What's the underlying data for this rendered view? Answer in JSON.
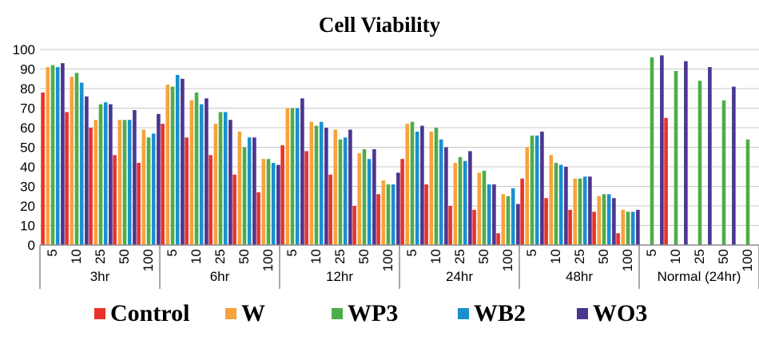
{
  "chart_data": {
    "type": "bar",
    "title": "Cell Viability",
    "xlabel": "",
    "ylabel": "",
    "ylim": [
      0,
      100
    ],
    "yticks": [
      0,
      10,
      20,
      30,
      40,
      50,
      60,
      70,
      80,
      90,
      100
    ],
    "grid": true,
    "legend_position": "bottom",
    "groups": [
      {
        "label": "3hr",
        "categories": [
          "5",
          "10",
          "25",
          "50",
          "100"
        ]
      },
      {
        "label": "6hr",
        "categories": [
          "5",
          "10",
          "25",
          "50",
          "100"
        ]
      },
      {
        "label": "12hr",
        "categories": [
          "5",
          "10",
          "25",
          "50",
          "100"
        ]
      },
      {
        "label": "24hr",
        "categories": [
          "5",
          "10",
          "25",
          "50",
          "100"
        ]
      },
      {
        "label": "48hr",
        "categories": [
          "5",
          "10",
          "25",
          "50",
          "100"
        ]
      },
      {
        "label": "Normal (24hr)",
        "categories": [
          "5",
          "10",
          "25",
          "50",
          "100"
        ]
      }
    ],
    "series": [
      {
        "name": "Control",
        "color": "#e8322b",
        "values": [
          78,
          68,
          60,
          46,
          42,
          62,
          55,
          46,
          36,
          27,
          51,
          48,
          36,
          20,
          26,
          44,
          31,
          20,
          18,
          6,
          34,
          24,
          18,
          17,
          6,
          null,
          65,
          null,
          null,
          null
        ]
      },
      {
        "name": "W",
        "color": "#f7a23b",
        "values": [
          91,
          86,
          64,
          64,
          59,
          82,
          74,
          62,
          58,
          44,
          70,
          63,
          59,
          47,
          33,
          62,
          58,
          42,
          37,
          26,
          50,
          46,
          34,
          25,
          18,
          null,
          null,
          null,
          null,
          null
        ]
      },
      {
        "name": "WP3",
        "color": "#4cae48",
        "values": [
          92,
          88,
          72,
          64,
          55,
          81,
          78,
          68,
          50,
          44,
          70,
          61,
          54,
          49,
          31,
          63,
          60,
          45,
          38,
          25,
          56,
          42,
          34,
          26,
          17,
          96,
          89,
          84,
          74,
          54
        ]
      },
      {
        "name": "WB2",
        "color": "#1a8fd0",
        "values": [
          91,
          83,
          73,
          64,
          57,
          87,
          72,
          68,
          55,
          42,
          70,
          63,
          55,
          44,
          31,
          58,
          54,
          43,
          31,
          29,
          56,
          41,
          35,
          26,
          17,
          null,
          null,
          null,
          null,
          null
        ]
      },
      {
        "name": "WO3",
        "color": "#4b3592",
        "values": [
          93,
          76,
          72,
          69,
          67,
          85,
          75,
          64,
          55,
          41,
          75,
          60,
          59,
          49,
          37,
          61,
          50,
          48,
          31,
          21,
          58,
          40,
          35,
          24,
          18,
          97,
          94,
          91,
          81,
          null
        ]
      }
    ]
  }
}
